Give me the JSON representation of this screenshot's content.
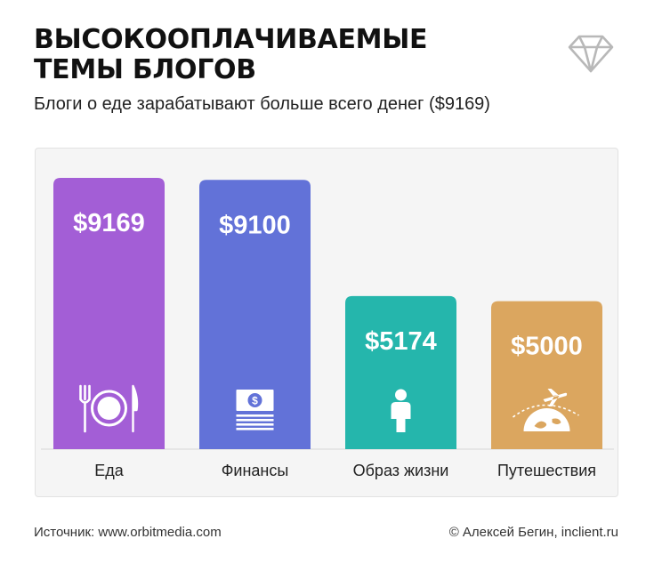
{
  "header": {
    "title_lines": [
      "ВЫСОКООПЛАЧИВАЕМЫЕ",
      "ТЕМЫ БЛОГОВ"
    ],
    "subtitle": "Блоги о еде зарабатывают больше всего денег ($9169)",
    "logo_icon": "diamond-icon"
  },
  "chart_data": {
    "type": "bar",
    "categories": [
      "Еда",
      "Финансы",
      "Образ жизни",
      "Путешествия"
    ],
    "values": [
      9169,
      9100,
      5174,
      5000
    ],
    "value_labels": [
      "$9169",
      "$9100",
      "$5174",
      "$5000"
    ],
    "colors": [
      "#a35ed6",
      "#6272d8",
      "#25b6ac",
      "#dba65f"
    ],
    "icons": [
      "food-plate-icon",
      "money-icon",
      "person-icon",
      "travel-globe-icon"
    ],
    "title": "",
    "xlabel": "",
    "ylabel": "",
    "ylim": [
      0,
      9169
    ],
    "grid": false,
    "legend": "none"
  },
  "footer": {
    "source": "Источник: www.orbitmedia.com",
    "credit": "© Алексей Бегин, inclient.ru"
  }
}
